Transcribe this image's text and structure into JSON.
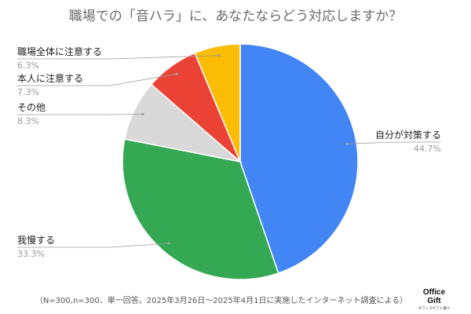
{
  "chart_data": {
    "type": "pie",
    "title": "職場での「音ハラ」に、あなたならどう対応しますか？",
    "categories": [
      "自分が対策する",
      "我慢する",
      "その他",
      "本人に注意する",
      "職場全体に注意する"
    ],
    "values": [
      44.7,
      33.3,
      8.3,
      7.3,
      6.3
    ],
    "value_labels": [
      "44.7%",
      "33.3%",
      "8.3%",
      "7.3%",
      "6.3%"
    ],
    "colors": [
      "#4285F4",
      "#34A853",
      "#D9D9D9",
      "#EA4335",
      "#FBBC04"
    ],
    "start_angle": "12 o'clock",
    "direction": "clockwise",
    "label_side": [
      "right",
      "left",
      "left",
      "left",
      "left"
    ]
  },
  "footnote": "（N=300,n=300、単一回答。2025年3月26日〜2025年4月1日に実施したインターネット調査による）",
  "logo": {
    "line1": "Office",
    "line2": "Gift",
    "tagline": "オフィスギフト選べ"
  }
}
